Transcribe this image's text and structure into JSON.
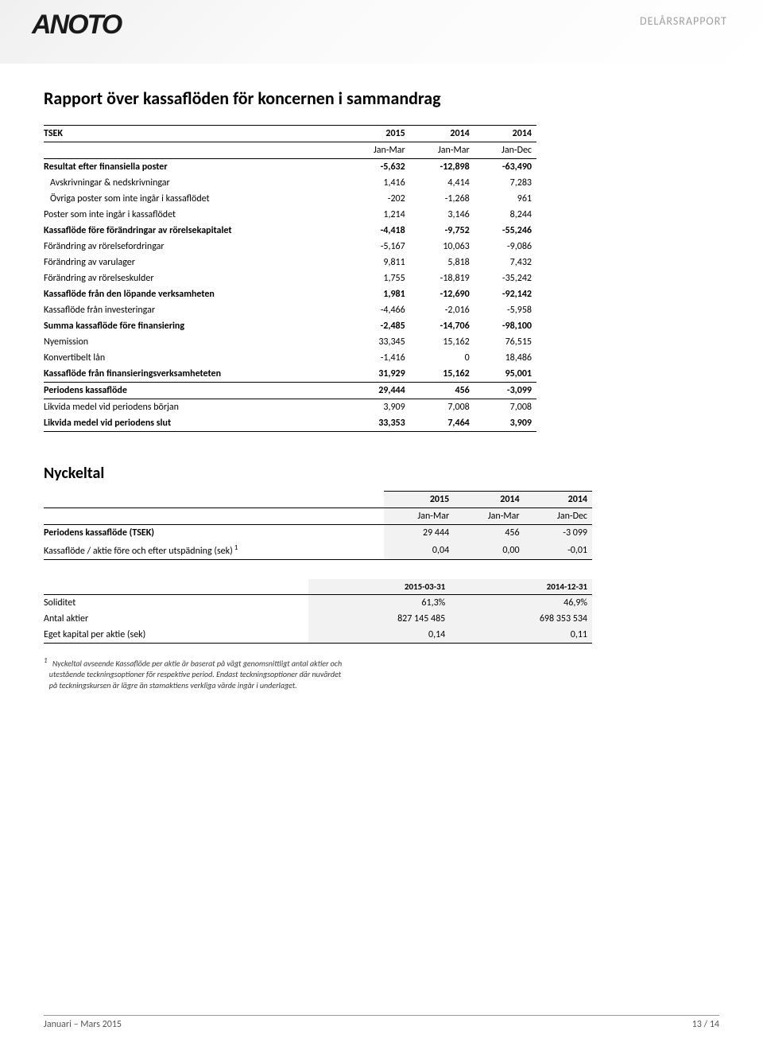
{
  "header": {
    "logo": "ANOTO",
    "doc_type": "DELÅRSRAPPORT"
  },
  "section1": {
    "title": "Rapport över kassaflöden för koncernen i sammandrag",
    "currency_label": "TSEK",
    "years": [
      "2015",
      "2014",
      "2014"
    ],
    "periods": [
      "Jan-Mar",
      "Jan-Mar",
      "Jan-Dec"
    ],
    "rows": [
      {
        "label": "Resultat efter finansiella poster",
        "bold": true,
        "v": [
          "-5,632",
          "-12,898",
          "-63,490"
        ]
      },
      {
        "label": "Avskrivningar & nedskrivningar",
        "indent": true,
        "v": [
          "1,416",
          "4,414",
          "7,283"
        ]
      },
      {
        "label": "Övriga poster som inte ingår i kassaflödet",
        "indent": true,
        "v": [
          "-202",
          "-1,268",
          "961"
        ]
      },
      {
        "label": "Poster som inte ingår i kassaflödet",
        "v": [
          "1,214",
          "3,146",
          "8,244"
        ]
      },
      {
        "label": "Kassaflöde före förändringar av rörelsekapitalet",
        "bold": true,
        "v": [
          "-4,418",
          "-9,752",
          "-55,246"
        ]
      },
      {
        "label": "Förändring av rörelsefordringar",
        "v": [
          "-5,167",
          "10,063",
          "-9,086"
        ]
      },
      {
        "label": "Förändring av varulager",
        "v": [
          "9,811",
          "5,818",
          "7,432"
        ]
      },
      {
        "label": "Förändring av rörelseskulder",
        "v": [
          "1,755",
          "-18,819",
          "-35,242"
        ]
      },
      {
        "label": "Kassaflöde från den löpande verksamheten",
        "bold": true,
        "v": [
          "1,981",
          "-12,690",
          "-92,142"
        ]
      },
      {
        "label": "Kassaflöde från investeringar",
        "v": [
          "-4,466",
          "-2,016",
          "-5,958"
        ]
      },
      {
        "label": "Summa kassaflöde före finansiering",
        "bold": true,
        "v": [
          "-2,485",
          "-14,706",
          "-98,100"
        ]
      },
      {
        "label": "Nyemission",
        "v": [
          "33,345",
          "15,162",
          "76,515"
        ]
      },
      {
        "label": "Konvertibelt lån",
        "v": [
          "-1,416",
          "0",
          "18,486"
        ]
      },
      {
        "label": "Kassaflöde från finansieringsverksamheteten",
        "bold": true,
        "line_bot": true,
        "v": [
          "31,929",
          "15,162",
          "95,001"
        ]
      },
      {
        "label": "Periodens kassaflöde",
        "bold": true,
        "line_bot": true,
        "v": [
          "29,444",
          "456",
          "-3,099"
        ]
      },
      {
        "label": "Likvida medel vid periodens början",
        "v": [
          "3,909",
          "7,008",
          "7,008"
        ]
      },
      {
        "label": "Likvida medel vid periodens slut",
        "bold": true,
        "line_bot": true,
        "v": [
          "33,353",
          "7,464",
          "3,909"
        ]
      }
    ]
  },
  "section2": {
    "title": "Nyckeltal",
    "years": [
      "2015",
      "2014",
      "2014"
    ],
    "periods": [
      "Jan-Mar",
      "Jan-Mar",
      "Jan-Dec"
    ],
    "rows1": [
      {
        "label": "Periodens kassaflöde (TSEK)",
        "bold": true,
        "v": [
          "29 444",
          "456",
          "-3 099"
        ]
      },
      {
        "label": "Kassaflöde / aktie före och efter utspädning (sek)",
        "sup": "1",
        "line_bot": true,
        "v": [
          "0,04",
          "0,00",
          "-0,01"
        ]
      }
    ],
    "dates": [
      "2015-03-31",
      "2014-12-31"
    ],
    "rows2": [
      {
        "label": "Soliditet",
        "line_top": true,
        "v": [
          "61,3%",
          "46,9%"
        ]
      },
      {
        "label": "Antal aktier",
        "v": [
          "827 145 485",
          "698 353 534"
        ]
      },
      {
        "label": "Eget kapital per aktie (sek)",
        "line_bot": true,
        "v": [
          "0,14",
          "0,11"
        ]
      }
    ]
  },
  "footnote": {
    "sup": "1",
    "l1": "Nyckeltal avseende Kassaflöde per aktie är baserat på vägt genomsnittligt antal aktier och",
    "l2": "utestående teckningsoptioner för respektive period. Endast teckningsoptioner där nuvärdet",
    "l3": "på teckningskursen är lägre än stamaktiens verkliga värde ingår i underlaget."
  },
  "footer": {
    "left": "Januari – Mars 2015",
    "right": "13 / 14"
  }
}
